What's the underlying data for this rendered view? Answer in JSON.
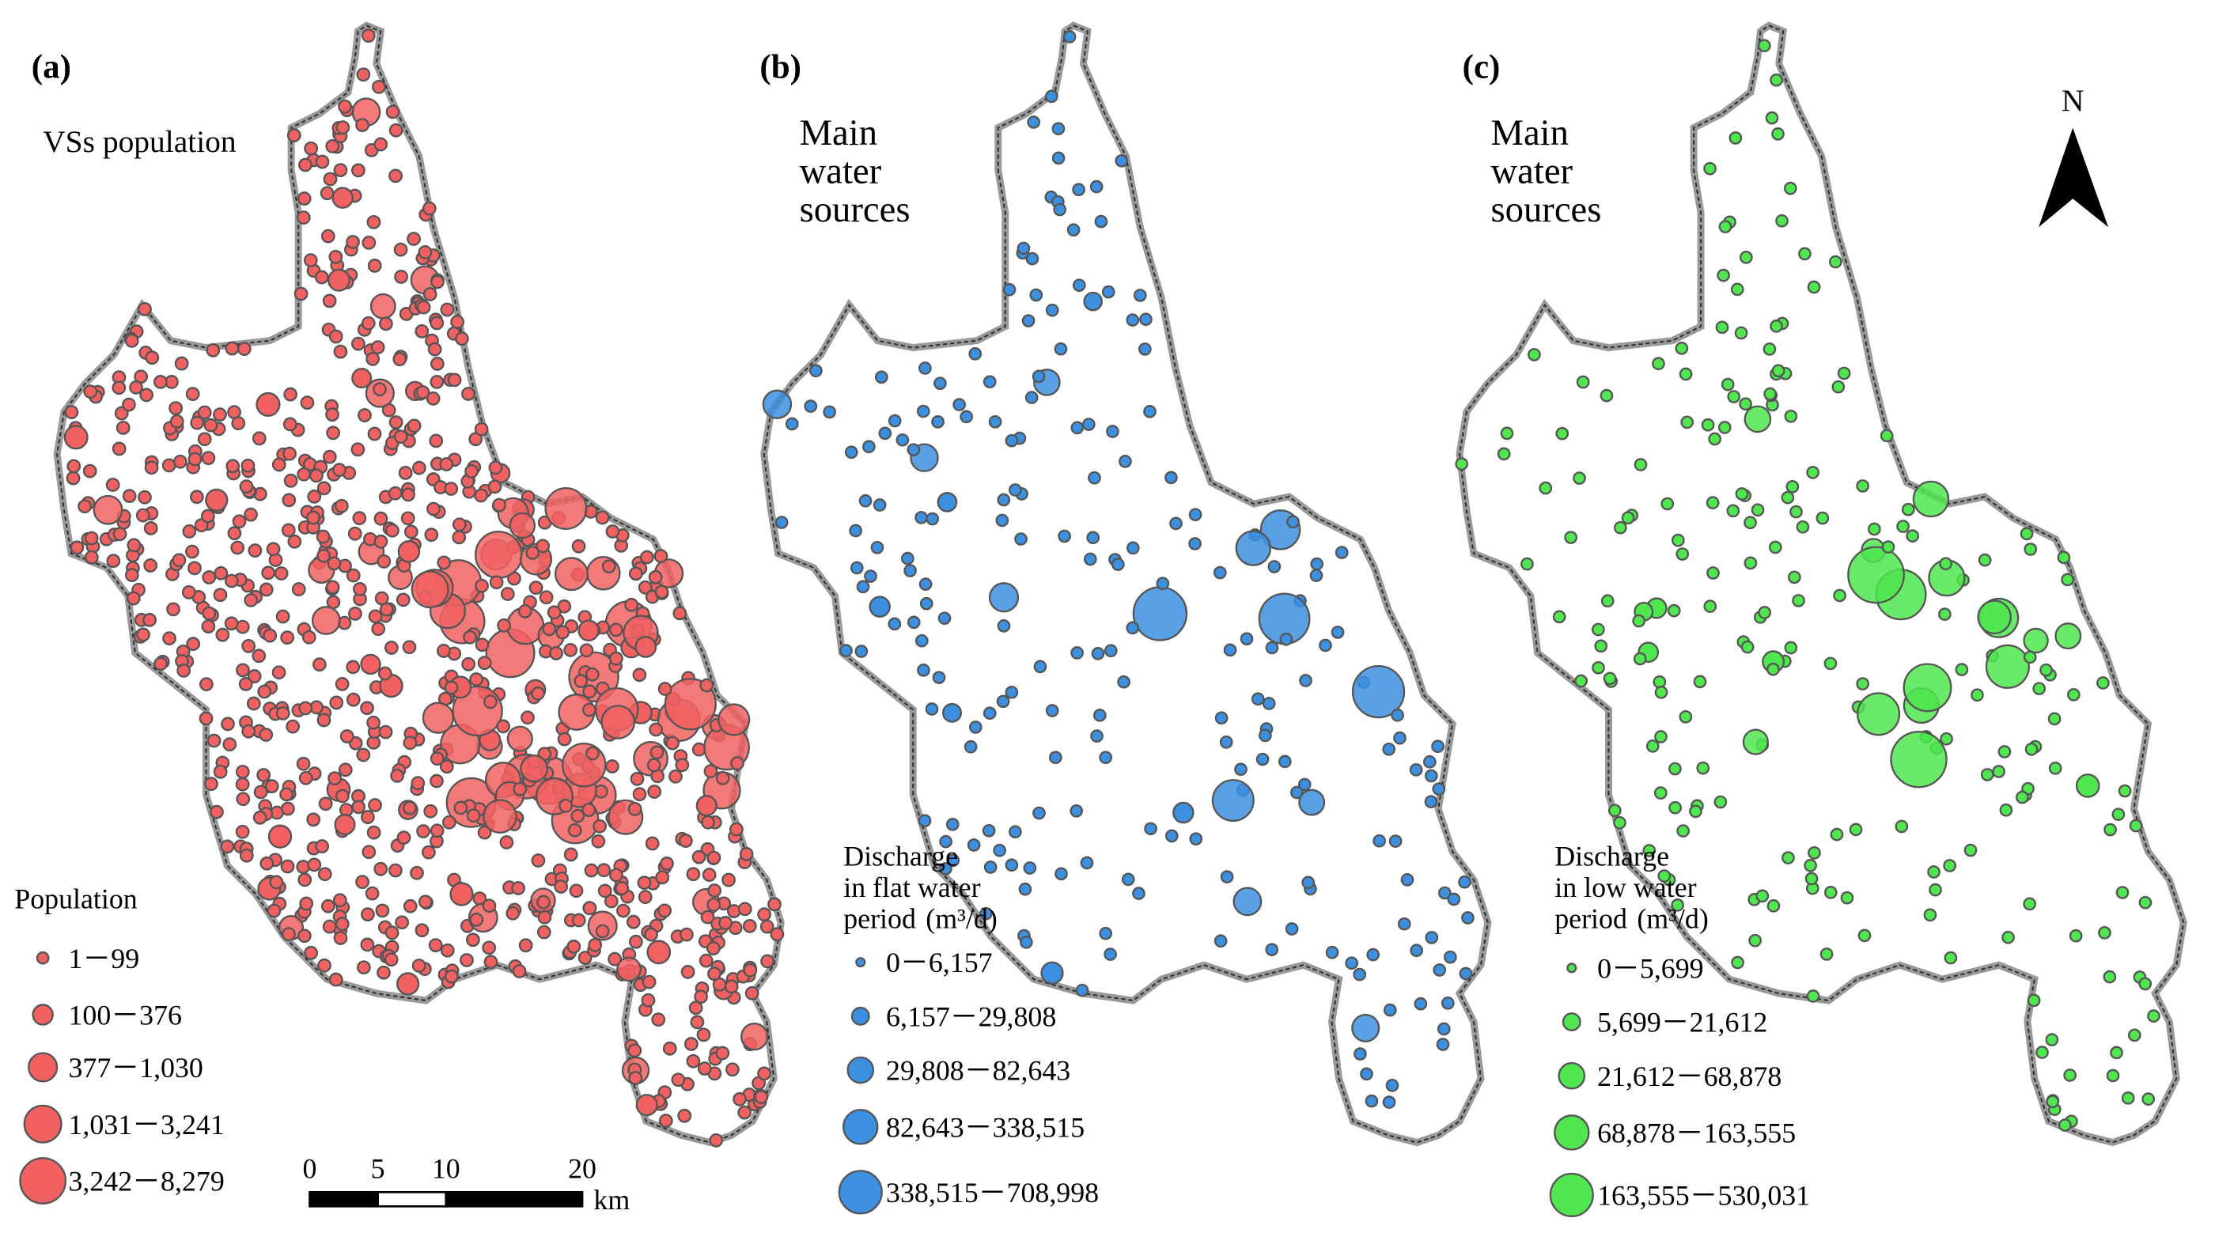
{
  "panels": [
    {
      "label": "(a)",
      "title_lines": [
        "VSs population"
      ],
      "dot_color": "#f26161",
      "legend": {
        "title_lines": [
          "Population"
        ],
        "items": [
          "1－99",
          "100－376",
          "377－1,030",
          "1,031－3,241",
          "3,242－8,279"
        ]
      }
    },
    {
      "label": "(b)",
      "title_lines": [
        "Main",
        "water",
        "sources"
      ],
      "dot_color": "#3d8fe0",
      "legend": {
        "title_lines": [
          "Discharge",
          "in flat water",
          "period"
        ],
        "unit": "(m³/d)",
        "items": [
          "0－6,157",
          "6,157－29,808",
          "29,808－82,643",
          "82,643－338,515",
          "338,515－708,998"
        ]
      }
    },
    {
      "label": "(c)",
      "title_lines": [
        "Main",
        "water",
        "sources"
      ],
      "dot_color": "#4fe64f",
      "legend": {
        "title_lines": [
          "Discharge",
          "in low water",
          "period"
        ],
        "unit": "(m³/d)",
        "items": [
          "0－5,699",
          "5,699－21,612",
          "21,612－68,878",
          "68,878－163,555",
          "163,555－530,031"
        ]
      }
    }
  ],
  "scale_bar": {
    "ticks": [
      0,
      5,
      10,
      20
    ],
    "unit": "km"
  },
  "north_arrow": "N"
}
